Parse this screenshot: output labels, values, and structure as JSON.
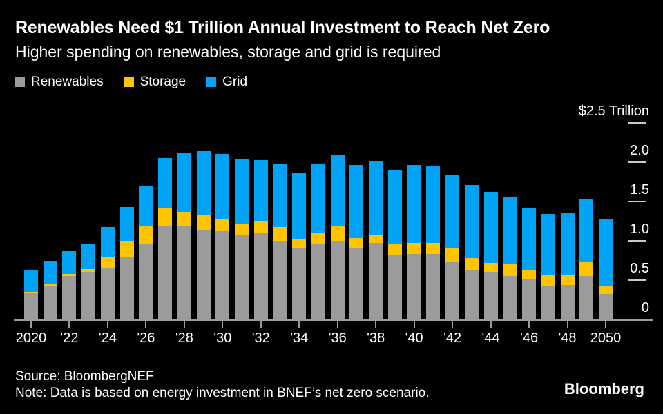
{
  "header": {
    "title": "Renewables Need $1 Trillion Annual Investment to Reach Net Zero",
    "subtitle": "Higher spending on renewables, storage and grid is required"
  },
  "legend": [
    {
      "label": "Renewables",
      "color": "#9b9b9b"
    },
    {
      "label": "Storage",
      "color": "#ffc400"
    },
    {
      "label": "Grid",
      "color": "#00a3f5"
    }
  ],
  "chart_data": {
    "type": "bar",
    "stacked": true,
    "title": "Renewables Need $1 Trillion Annual Investment to Reach Net Zero",
    "subtitle": "Higher spending on renewables, storage and grid is required",
    "unit": "trillion USD per year",
    "grid": false,
    "legend_position": "top-left",
    "colors": {
      "axis": "#9b9b9b",
      "y_dash": "#c9c9c9"
    },
    "x": [
      2020,
      2021,
      2022,
      2023,
      2024,
      2025,
      2026,
      2027,
      2028,
      2029,
      2030,
      2031,
      2032,
      2033,
      2034,
      2035,
      2036,
      2037,
      2038,
      2039,
      2040,
      2041,
      2042,
      2043,
      2044,
      2045,
      2046,
      2047,
      2048,
      2049,
      2050
    ],
    "series": [
      {
        "name": "Renewables",
        "color": "#9b9b9b",
        "values": [
          0.36,
          0.45,
          0.57,
          0.62,
          0.67,
          0.81,
          0.98,
          1.21,
          1.2,
          1.16,
          1.14,
          1.09,
          1.11,
          1.02,
          0.92,
          0.98,
          1.02,
          0.93,
          0.99,
          0.83,
          0.85,
          0.85,
          0.75,
          0.64,
          0.62,
          0.57,
          0.53,
          0.45,
          0.46,
          0.57,
          0.34
        ]
      },
      {
        "name": "Storage",
        "color": "#ffc400",
        "values": [
          0.01,
          0.02,
          0.03,
          0.04,
          0.15,
          0.21,
          0.22,
          0.22,
          0.19,
          0.19,
          0.15,
          0.15,
          0.16,
          0.17,
          0.12,
          0.14,
          0.18,
          0.12,
          0.11,
          0.14,
          0.14,
          0.14,
          0.17,
          0.16,
          0.12,
          0.15,
          0.11,
          0.13,
          0.12,
          0.18,
          0.11
        ]
      },
      {
        "name": "Grid",
        "color": "#00a3f5",
        "values": [
          0.28,
          0.29,
          0.29,
          0.31,
          0.37,
          0.43,
          0.51,
          0.64,
          0.74,
          0.81,
          0.83,
          0.81,
          0.77,
          0.81,
          0.84,
          0.87,
          0.91,
          0.93,
          0.93,
          0.95,
          0.99,
          0.98,
          0.94,
          0.93,
          0.9,
          0.85,
          0.8,
          0.78,
          0.8,
          0.79,
          0.85
        ]
      }
    ],
    "y_axis": {
      "max": 2.5,
      "ticks": [
        {
          "label": "$2.5 Trillion",
          "value": 2.5
        },
        {
          "label": "2.0",
          "value": 2.0
        },
        {
          "label": "1.5",
          "value": 1.5
        },
        {
          "label": "1.0",
          "value": 1.0
        },
        {
          "label": "0.5",
          "value": 0.5
        },
        {
          "label": "0",
          "value": 0
        }
      ]
    },
    "x_ticks": [
      {
        "year": 2020,
        "label": "2020"
      },
      {
        "year": 2022,
        "label": "'22"
      },
      {
        "year": 2024,
        "label": "'24"
      },
      {
        "year": 2026,
        "label": "'26"
      },
      {
        "year": 2028,
        "label": "'28"
      },
      {
        "year": 2030,
        "label": "'30"
      },
      {
        "year": 2032,
        "label": "'32"
      },
      {
        "year": 2034,
        "label": "'34"
      },
      {
        "year": 2036,
        "label": "'36"
      },
      {
        "year": 2038,
        "label": "'38"
      },
      {
        "year": 2040,
        "label": "'40"
      },
      {
        "year": 2042,
        "label": "'42"
      },
      {
        "year": 2044,
        "label": "'44"
      },
      {
        "year": 2046,
        "label": "'46"
      },
      {
        "year": 2048,
        "label": "'48"
      },
      {
        "year": 2050,
        "label": "2050"
      }
    ]
  },
  "footer": {
    "source": "Source: BloombergNEF",
    "note": "Note: Data is based on energy investment in BNEF’s net zero scenario.",
    "brand": "Bloomberg"
  }
}
